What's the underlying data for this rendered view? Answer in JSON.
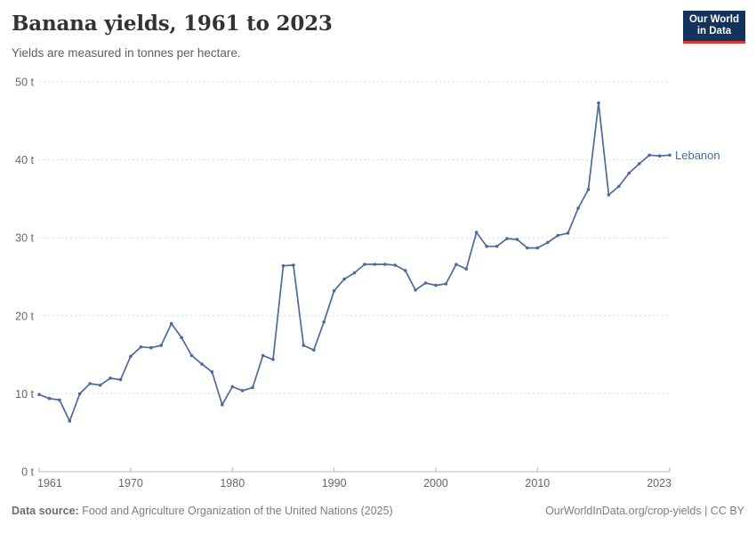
{
  "header": {
    "title": "Banana yields, 1961 to 2023",
    "subtitle": "Yields are measured in tonnes per hectare.",
    "logo": {
      "line1": "Our World",
      "line2": "in Data"
    }
  },
  "chart_data": {
    "type": "line",
    "title": "Banana yields, 1961 to 2023",
    "ylabel": "tonnes per hectare",
    "xlabel": "",
    "unit": "t",
    "xlim": [
      1961,
      2023
    ],
    "ylim": [
      0,
      50
    ],
    "x_ticks": [
      1961,
      1970,
      1980,
      1990,
      2000,
      2010,
      2023
    ],
    "y_ticks": [
      0,
      10,
      20,
      30,
      40,
      50
    ],
    "y_tick_suffix": " t",
    "grid": "dashed-horizontal",
    "legend_position": "end-of-line",
    "series": [
      {
        "name": "Lebanon",
        "color": "#4C6A9C",
        "x": [
          1961,
          1962,
          1963,
          1964,
          1965,
          1966,
          1967,
          1968,
          1969,
          1970,
          1971,
          1972,
          1973,
          1974,
          1975,
          1976,
          1977,
          1978,
          1979,
          1980,
          1981,
          1982,
          1983,
          1984,
          1985,
          1986,
          1987,
          1988,
          1989,
          1990,
          1991,
          1992,
          1993,
          1994,
          1995,
          1996,
          1997,
          1998,
          1999,
          2000,
          2001,
          2002,
          2003,
          2004,
          2005,
          2006,
          2007,
          2008,
          2009,
          2010,
          2011,
          2012,
          2013,
          2014,
          2015,
          2016,
          2017,
          2018,
          2019,
          2020,
          2021,
          2022,
          2023
        ],
        "values": [
          9.9,
          9.4,
          9.2,
          6.5,
          10.0,
          11.3,
          11.1,
          12.0,
          11.8,
          14.8,
          16.0,
          15.9,
          16.2,
          19.0,
          17.2,
          14.9,
          13.8,
          12.8,
          8.6,
          10.9,
          10.4,
          10.8,
          14.9,
          14.4,
          26.4,
          26.5,
          16.2,
          15.6,
          19.2,
          23.2,
          24.7,
          25.5,
          26.6,
          26.6,
          26.6,
          26.5,
          25.8,
          23.3,
          24.2,
          23.9,
          24.1,
          26.6,
          26.0,
          30.7,
          28.9,
          28.9,
          29.9,
          29.8,
          28.7,
          28.7,
          29.4,
          30.3,
          30.6,
          33.8,
          36.2,
          47.3,
          35.5,
          36.6,
          38.3,
          39.5,
          40.6,
          40.5,
          40.6
        ]
      }
    ]
  },
  "footer": {
    "datasource_label": "Data source:",
    "datasource_text": " Food and Agriculture Organization of the United Nations (2025)",
    "credit": "OurWorldInData.org/crop-yields | CC BY"
  },
  "colors": {
    "line": "#4C6A9C",
    "grid": "#dcdcdc",
    "axis": "#b5b5b5",
    "tick_label": "#666666"
  }
}
